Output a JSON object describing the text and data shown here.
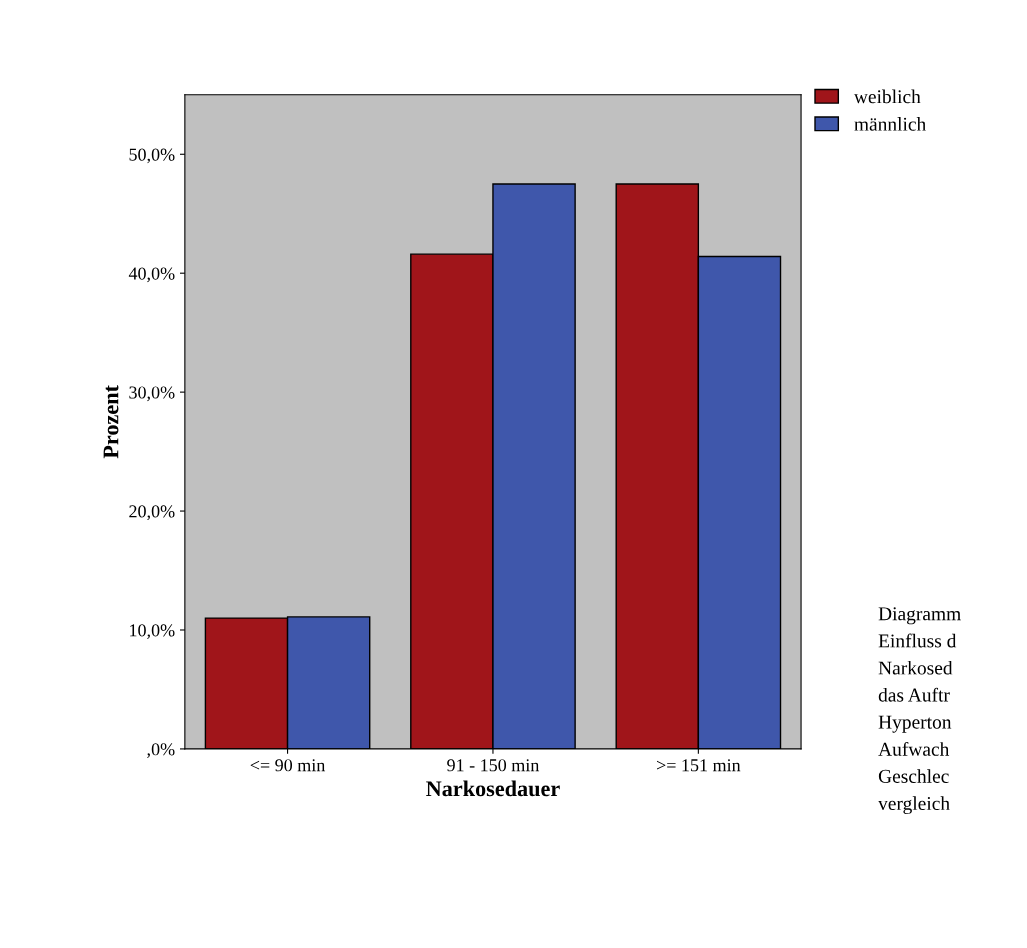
{
  "chart_data": {
    "type": "bar",
    "xlabel": "Narkosedauer",
    "ylabel": "Prozent",
    "categories": [
      "<= 90 min",
      "91 - 150 min",
      ">= 151 min"
    ],
    "series": [
      {
        "name": "weiblich",
        "color": "#a0151a",
        "values": [
          11.0,
          41.6,
          47.5
        ]
      },
      {
        "name": "männlich",
        "color": "#3f57ab",
        "values": [
          11.1,
          47.5,
          41.4
        ]
      }
    ],
    "ylim": [
      0,
      55
    ],
    "yticks": [
      {
        "value": 0,
        "label": ",0%"
      },
      {
        "value": 10,
        "label": "10,0%"
      },
      {
        "value": 20,
        "label": "20,0%"
      },
      {
        "value": 30,
        "label": "30,0%"
      },
      {
        "value": 40,
        "label": "40,0%"
      },
      {
        "value": 50,
        "label": "50,0%"
      }
    ],
    "grid": false,
    "legend": "top right",
    "annotations": [
      "Diagramm\nEinfluss d\nNarkosed\ndas Auftr\nHyperton\nAufwach\nGeschlec\nvergleich"
    ]
  }
}
